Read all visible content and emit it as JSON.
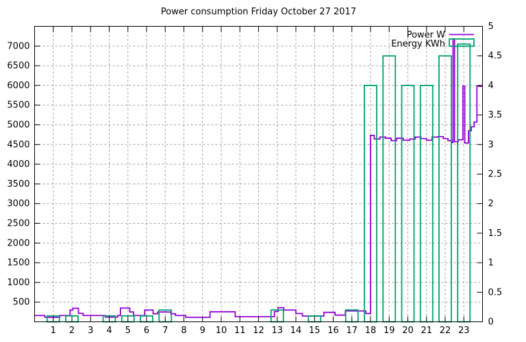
{
  "title": "Power consumption Friday October 27 2017",
  "colors": {
    "power": "#9400d3",
    "energy": "#00a070",
    "grid": "#a0a0a0",
    "axis": "#000000",
    "background": "#ffffff"
  },
  "legend": {
    "position": "top-right-inside",
    "entries": [
      {
        "label": "Power W",
        "sample": "line",
        "color": "#9400d3"
      },
      {
        "label": "Energy KWh",
        "sample": "box",
        "color": "#00a070"
      }
    ]
  },
  "chart_data": {
    "type": "combo",
    "title": "Power consumption Friday October 27 2017",
    "xlabel": "",
    "x_axis": {
      "min": 0,
      "max": 24,
      "tick_labels": [
        1,
        2,
        3,
        4,
        5,
        6,
        7,
        8,
        9,
        10,
        11,
        12,
        13,
        14,
        15,
        16,
        17,
        18,
        19,
        20,
        21,
        22,
        23
      ]
    },
    "y_left_axis": {
      "min": 0,
      "max": 7500,
      "tick_step": 500,
      "tick_labels": [
        500,
        1000,
        1500,
        2000,
        2500,
        3000,
        3500,
        4000,
        4500,
        5000,
        5500,
        6000,
        6500,
        7000
      ],
      "series": "Power W",
      "unit": "W"
    },
    "y_right_axis": {
      "min": 0,
      "max": 5,
      "tick_step": 0.5,
      "tick_labels": [
        "0",
        "0.5",
        "1",
        "1.5",
        "2",
        "2.5",
        "3",
        "3.5",
        "4",
        "4.5",
        "5"
      ],
      "series": "Energy KWh",
      "unit": "KWh"
    },
    "grid": {
      "horizontal_every_w": 500,
      "vertical_every_hour": 1,
      "style": "dashed"
    },
    "series": [
      {
        "name": "Power W",
        "type": "step-line",
        "color": "#9400d3",
        "unit": "W",
        "points_hour_watts": [
          [
            0,
            160
          ],
          [
            0.55,
            115
          ],
          [
            1.35,
            160
          ],
          [
            1.9,
            300
          ],
          [
            2.05,
            345
          ],
          [
            2.35,
            215
          ],
          [
            2.6,
            160
          ],
          [
            3.8,
            120
          ],
          [
            4.45,
            160
          ],
          [
            4.6,
            350
          ],
          [
            5.1,
            250
          ],
          [
            5.3,
            160
          ],
          [
            5.9,
            300
          ],
          [
            6.35,
            205
          ],
          [
            6.6,
            250
          ],
          [
            7.3,
            205
          ],
          [
            7.55,
            160
          ],
          [
            8.1,
            115
          ],
          [
            9.4,
            255
          ],
          [
            10.75,
            130
          ],
          [
            12.85,
            260
          ],
          [
            13.05,
            360
          ],
          [
            13.35,
            300
          ],
          [
            14.0,
            210
          ],
          [
            14.35,
            145
          ],
          [
            15.5,
            240
          ],
          [
            16.1,
            170
          ],
          [
            16.65,
            275
          ],
          [
            17.75,
            210
          ],
          [
            18.0,
            4730
          ],
          [
            18.2,
            4640
          ],
          [
            18.5,
            4690
          ],
          [
            18.8,
            4660
          ],
          [
            19.1,
            4600
          ],
          [
            19.4,
            4660
          ],
          [
            19.75,
            4610
          ],
          [
            20.1,
            4640
          ],
          [
            20.4,
            4690
          ],
          [
            20.7,
            4650
          ],
          [
            21.0,
            4610
          ],
          [
            21.3,
            4690
          ],
          [
            21.6,
            4700
          ],
          [
            21.9,
            4650
          ],
          [
            22.15,
            4600
          ],
          [
            22.35,
            4550
          ],
          [
            22.42,
            7180
          ],
          [
            22.5,
            4570
          ],
          [
            22.7,
            4620
          ],
          [
            22.95,
            5980
          ],
          [
            23.05,
            4540
          ],
          [
            23.25,
            4850
          ],
          [
            23.4,
            4950
          ],
          [
            23.55,
            5070
          ],
          [
            23.7,
            5980
          ],
          [
            24,
            5980
          ]
        ]
      },
      {
        "name": "Energy KWh",
        "type": "box-outline",
        "color": "#00a070",
        "unit": "KWh",
        "bar_width_hours": 0.66,
        "values_hour_kwh": [
          [
            1,
            0.1
          ],
          [
            2,
            0.1
          ],
          [
            4,
            0.1
          ],
          [
            5,
            0.1
          ],
          [
            6,
            0.1
          ],
          [
            7,
            0.2
          ],
          [
            13,
            0.2
          ],
          [
            15,
            0.1
          ],
          [
            17,
            0.2
          ],
          [
            18,
            4.0
          ],
          [
            19,
            4.5
          ],
          [
            20,
            4.0
          ],
          [
            21,
            4.0
          ],
          [
            22,
            4.5
          ],
          [
            23,
            4.7
          ]
        ]
      }
    ]
  }
}
